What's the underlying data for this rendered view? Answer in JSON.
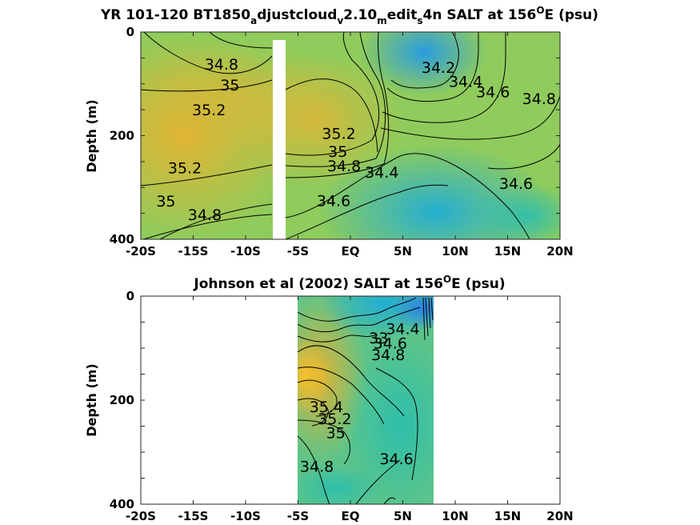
{
  "chart_data": [
    {
      "type": "contour",
      "title": {
        "parts": [
          {
            "text": "YR 101-120 BT1850",
            "sub": false
          },
          {
            "text": "a",
            "sub": true
          },
          {
            "text": "djustcloud",
            "sub": false
          },
          {
            "text": "v",
            "sub": true
          },
          {
            "text": "2.10",
            "sub": false
          },
          {
            "text": "m",
            "sub": true
          },
          {
            "text": "edit",
            "sub": false
          },
          {
            "text": "s",
            "sub": true
          },
          {
            "text": "4n SALT at 156",
            "sub": false
          },
          {
            "text": "O",
            "sup": true
          },
          {
            "text": "E (psu)",
            "sub": false
          }
        ]
      },
      "ylabel": "Depth (m)",
      "xlim": [
        -20,
        20
      ],
      "ylim": [
        0,
        400
      ],
      "y_reversed": true,
      "x_ticks": [
        {
          "value": -20,
          "label": "-20S"
        },
        {
          "value": -15,
          "label": "-15S"
        },
        {
          "value": -10,
          "label": "-10S"
        },
        {
          "value": -5,
          "label": "-5S"
        },
        {
          "value": 0,
          "label": "EQ"
        },
        {
          "value": 5,
          "label": "5N"
        },
        {
          "value": 10,
          "label": "10N"
        },
        {
          "value": 15,
          "label": "15N"
        },
        {
          "value": 20,
          "label": "20N"
        }
      ],
      "y_ticks": [
        {
          "value": 0,
          "label": "0"
        },
        {
          "value": 200,
          "label": "200"
        },
        {
          "value": 400,
          "label": "400"
        }
      ],
      "data_x_range": [
        -20,
        20
      ],
      "no_data_bands": [
        {
          "x": [
            -7.5,
            -6.4
          ],
          "depth": [
            15,
            400
          ]
        }
      ],
      "contour_labels": [
        {
          "text": "34.8",
          "x": -12.3,
          "y": 62
        },
        {
          "text": "35",
          "x": -11.5,
          "y": 102
        },
        {
          "text": "35.2",
          "x": -13.5,
          "y": 150
        },
        {
          "text": "35.2",
          "x": -1.1,
          "y": 195
        },
        {
          "text": "35",
          "x": -1.2,
          "y": 230
        },
        {
          "text": "34.8",
          "x": -0.6,
          "y": 258
        },
        {
          "text": "35.2",
          "x": -15.8,
          "y": 262
        },
        {
          "text": "35",
          "x": -17.6,
          "y": 326
        },
        {
          "text": "34.8",
          "x": -13.9,
          "y": 352
        },
        {
          "text": "34.6",
          "x": -1.6,
          "y": 325
        },
        {
          "text": "34.4",
          "x": 3.0,
          "y": 270
        },
        {
          "text": "34.2",
          "x": 8.4,
          "y": 68
        },
        {
          "text": "34.4",
          "x": 11.0,
          "y": 95
        },
        {
          "text": "34.6",
          "x": 13.6,
          "y": 115
        },
        {
          "text": "34.8",
          "x": 18.0,
          "y": 128
        },
        {
          "text": "34.6",
          "x": 15.8,
          "y": 292
        }
      ]
    },
    {
      "type": "contour",
      "title": {
        "parts": [
          {
            "text": "Johnson et al (2002) SALT at 156",
            "sub": false
          },
          {
            "text": "O",
            "sup": true
          },
          {
            "text": "E (psu)",
            "sub": false
          }
        ]
      },
      "ylabel": "Depth (m)",
      "xlim": [
        -20,
        20
      ],
      "ylim": [
        0,
        400
      ],
      "y_reversed": true,
      "x_ticks": [
        {
          "value": -20,
          "label": "-20S"
        },
        {
          "value": -15,
          "label": "-15S"
        },
        {
          "value": -10,
          "label": "-10S"
        },
        {
          "value": -5,
          "label": "-5S"
        },
        {
          "value": 0,
          "label": "EQ"
        },
        {
          "value": 5,
          "label": "5N"
        },
        {
          "value": 10,
          "label": "10N"
        },
        {
          "value": 15,
          "label": "15N"
        },
        {
          "value": 20,
          "label": "20N"
        }
      ],
      "y_ticks": [
        {
          "value": 0,
          "label": "0"
        },
        {
          "value": 200,
          "label": "200"
        },
        {
          "value": 400,
          "label": "400"
        }
      ],
      "data_x_range": [
        -5,
        8
      ],
      "contour_labels": [
        {
          "text": "34.4",
          "x": 5.0,
          "y": 62
        },
        {
          "text": "34.6",
          "x": 3.8,
          "y": 90
        },
        {
          "text": "34.8",
          "x": 3.6,
          "y": 112
        },
        {
          "text": "33",
          "x": 2.7,
          "y": 80
        },
        {
          "text": "35.4",
          "x": -2.3,
          "y": 212
        },
        {
          "text": "35.2",
          "x": -1.5,
          "y": 235
        },
        {
          "text": "35",
          "x": -1.4,
          "y": 262
        },
        {
          "text": "34.8",
          "x": -3.2,
          "y": 327
        },
        {
          "text": "34.6",
          "x": 4.4,
          "y": 312
        }
      ]
    }
  ]
}
